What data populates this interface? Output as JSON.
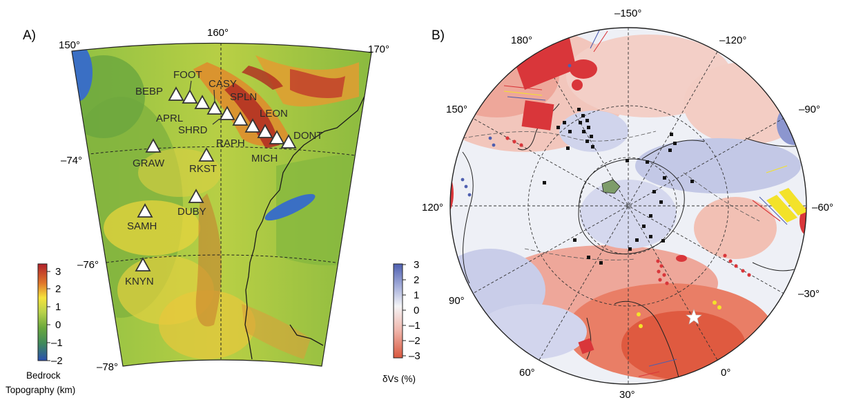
{
  "panel_a": {
    "label": "A)",
    "lon_labels": [
      "150°",
      "160°",
      "170°"
    ],
    "lat_labels": [
      "–74°",
      "–76°",
      "–78°"
    ],
    "stations": [
      "FOOT",
      "BEBP",
      "CASY",
      "SPLN",
      "APRL",
      "SHRD",
      "LEON",
      "RAPH",
      "DONT",
      "MICH",
      "GRAW",
      "RKST",
      "DUBY",
      "SAMH",
      "KNYN"
    ],
    "colorbar": {
      "ticks": [
        "3",
        "2",
        "1",
        "0",
        "–1",
        "–2"
      ],
      "label_line1": "Bedrock",
      "label_line2": "Topography (km)",
      "colors": [
        "#c0392b",
        "#e67e22",
        "#f4e13a",
        "#9bc53d",
        "#4f9a3a",
        "#2e5fb0"
      ]
    }
  },
  "panel_b": {
    "label": "B)",
    "lon_labels": [
      "–150°",
      "–120°",
      "–90°",
      "–60°",
      "–30°",
      "0°",
      "30°",
      "60°",
      "90°",
      "120°",
      "150°",
      "180°"
    ],
    "colorbar": {
      "ticks": [
        "3",
        "2",
        "1",
        "0",
        "–1",
        "–2",
        "–3"
      ],
      "label": "δVs (%)",
      "colors": [
        "#4e5fb0",
        "#a9b2dc",
        "#f4f4f6",
        "#f0b8ae",
        "#d9573e"
      ]
    }
  }
}
